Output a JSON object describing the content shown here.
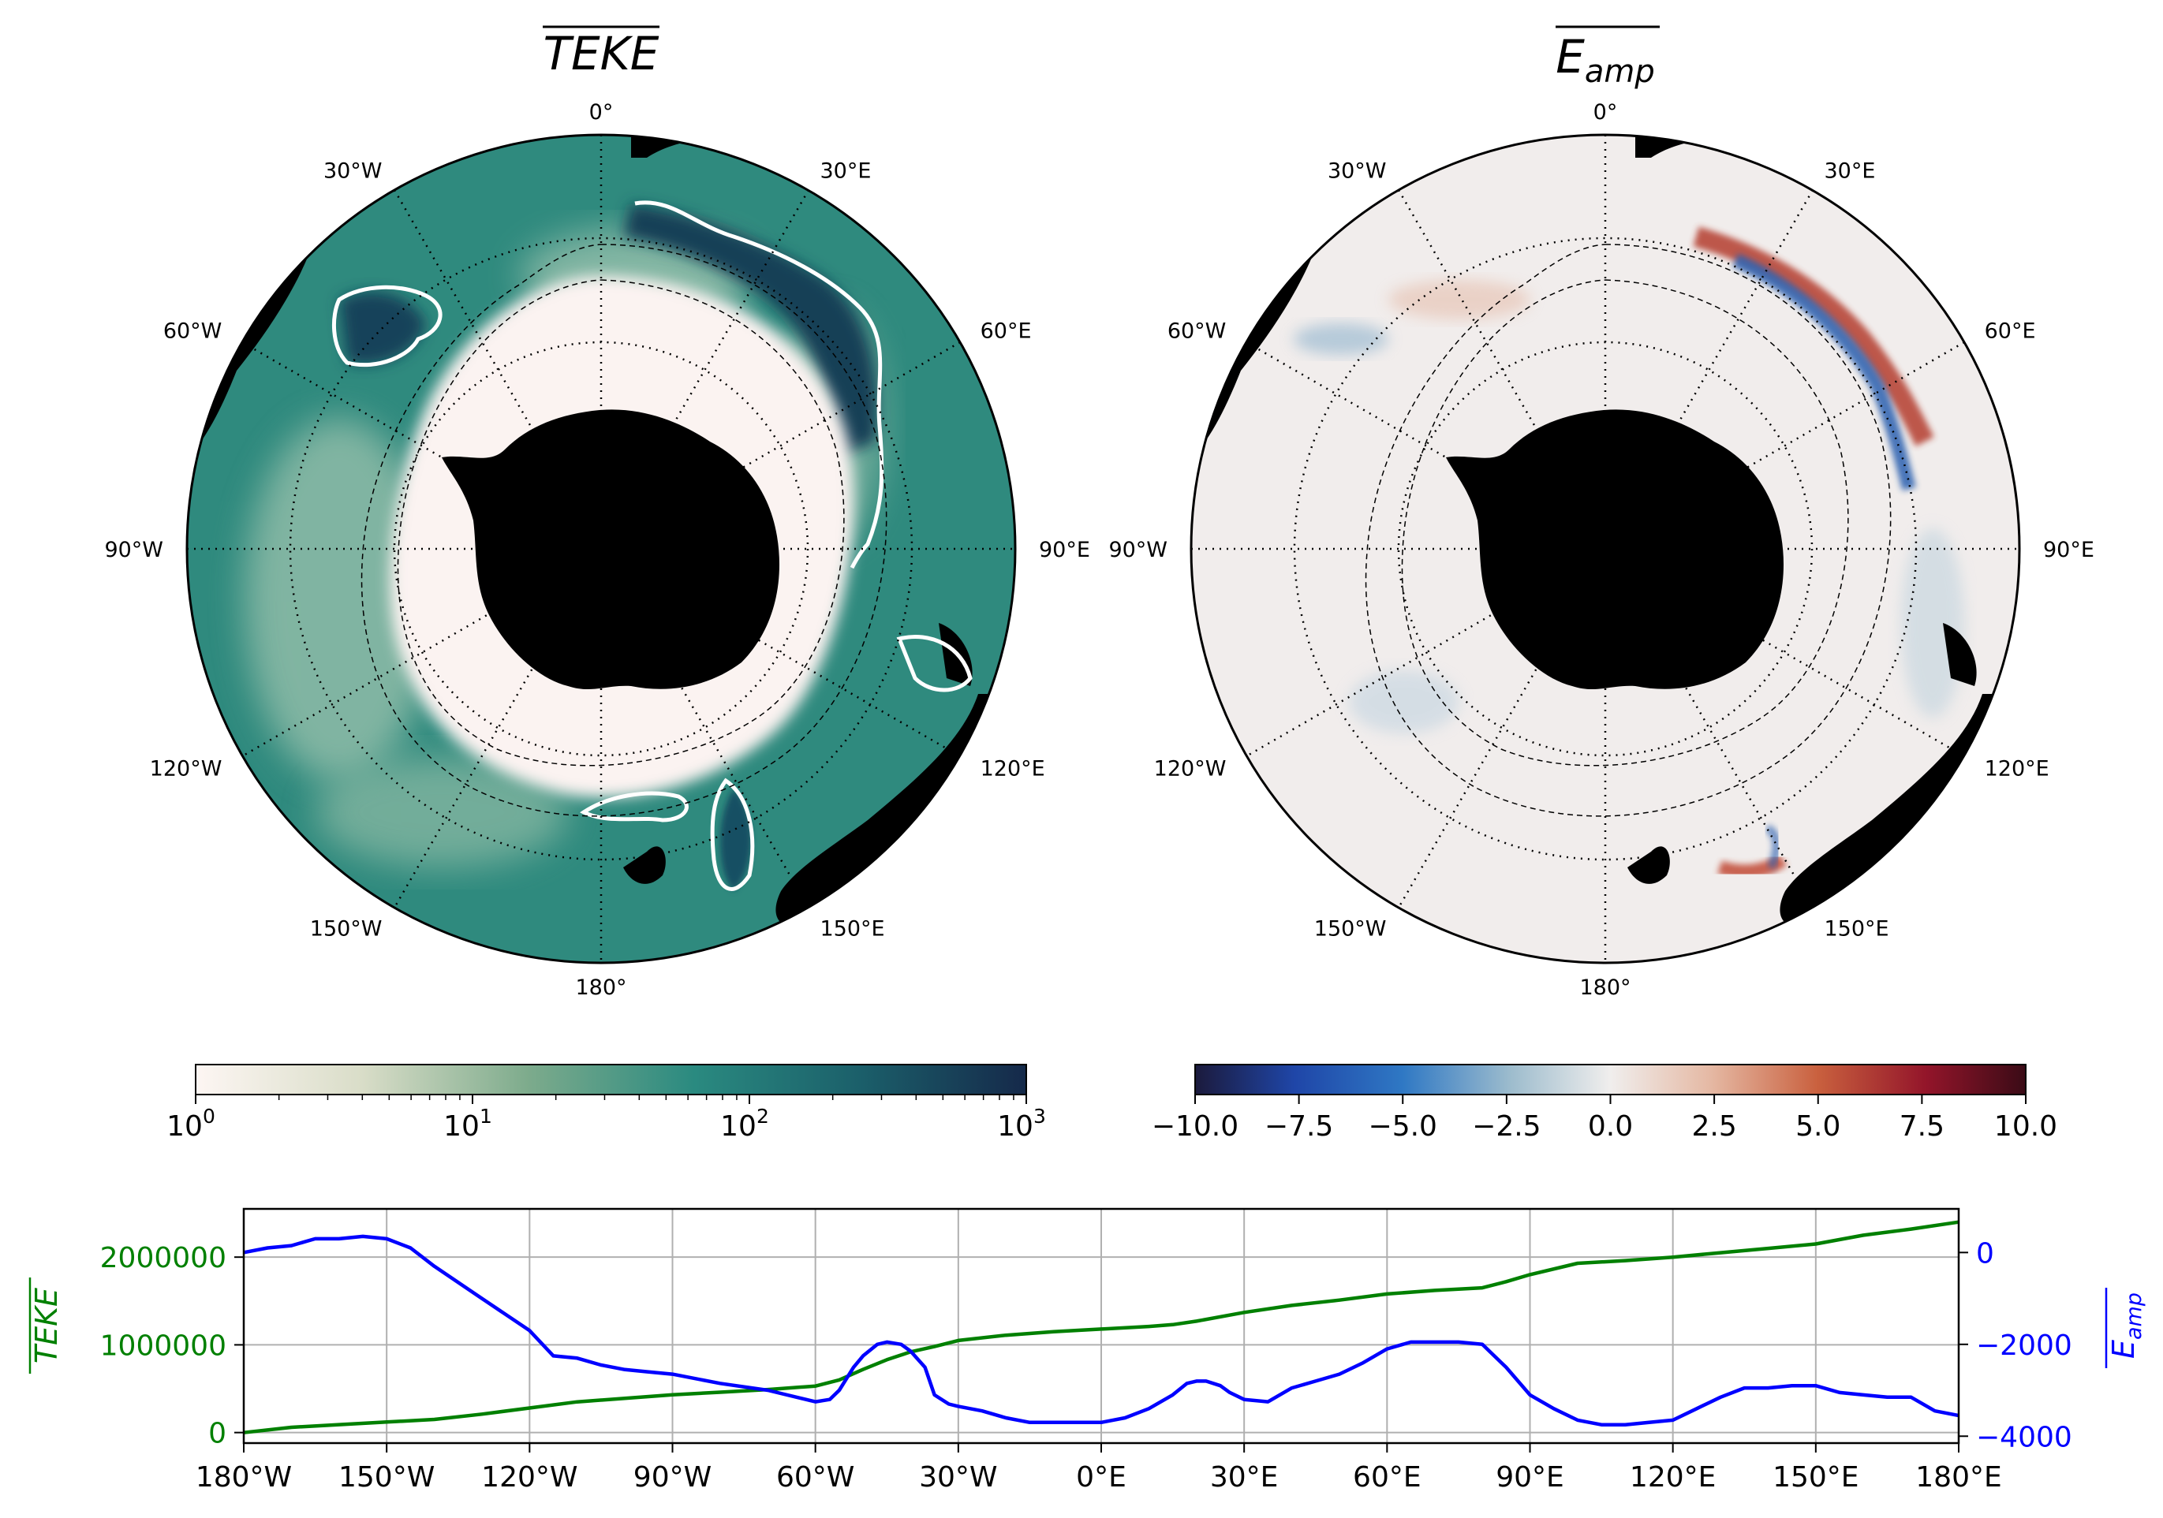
{
  "panels": [
    {
      "id": "teke",
      "title": "TEKE",
      "meridian_labels": [
        "0°",
        "30°E",
        "60°E",
        "90°E",
        "120°E",
        "150°E",
        "180°",
        "150°W",
        "120°W",
        "90°W",
        "60°W",
        "30°W"
      ],
      "colorbar": {
        "scale": "log",
        "range": [
          1,
          1000
        ],
        "tick_labels": [
          {
            "base": "10",
            "exp": "0"
          },
          {
            "base": "10",
            "exp": "1"
          },
          {
            "base": "10",
            "exp": "2"
          },
          {
            "base": "10",
            "exp": "3"
          }
        ],
        "colors": [
          "#fdf6f3",
          "#d9ddc8",
          "#7dab8c",
          "#2a8a80",
          "#1b5f6a",
          "#15294a"
        ]
      },
      "colors": {
        "land": "#000000",
        "ocean_fill": "#2f8a7e",
        "ice_zone": "#fbf3f1",
        "contour": "#ffffff"
      }
    },
    {
      "id": "eamp",
      "title": "E",
      "title_sub": "amp",
      "meridian_labels": [
        "0°",
        "30°E",
        "60°E",
        "90°E",
        "120°E",
        "150°E",
        "180°",
        "150°W",
        "120°W",
        "90°W",
        "60°W",
        "30°W"
      ],
      "colorbar": {
        "scale": "linear",
        "range": [
          -10,
          10
        ],
        "tick_labels": [
          "−10.0",
          "−7.5",
          "−5.0",
          "−2.5",
          "0.0",
          "2.5",
          "5.0",
          "7.5",
          "10.0"
        ],
        "colors": [
          "#1b1a3c",
          "#1f46a8",
          "#2f78c4",
          "#9dbccd",
          "#f0eeed",
          "#e5b9a4",
          "#c9603e",
          "#93152a",
          "#3a0b16"
        ]
      },
      "colors": {
        "land": "#000000",
        "ocean_fill": "#f1edec",
        "positive": "#c14a35",
        "negative": "#2b61b0"
      }
    }
  ],
  "line_chart": {
    "left_ylabel": "TEKE",
    "right_ylabel": "E",
    "right_ylabel_sub": "amp",
    "left_color": "#008000",
    "right_color": "#0000ff",
    "x_tick_labels": [
      "180°W",
      "150°W",
      "120°W",
      "90°W",
      "60°W",
      "30°W",
      "0°E",
      "30°E",
      "60°E",
      "90°E",
      "120°E",
      "150°E",
      "180°E"
    ],
    "left_tick_labels": [
      "0",
      "1000000",
      "2000000"
    ],
    "right_tick_labels": [
      "0",
      "−2000",
      "−4000"
    ]
  },
  "chart_data": {
    "type": "line",
    "x_unit": "degrees longitude",
    "xlim": [
      -180,
      180
    ],
    "series": [
      {
        "name": "TEKE",
        "axis": "left",
        "ylim": [
          -120000,
          2550000
        ],
        "x": [
          -180,
          -170,
          -160,
          -150,
          -140,
          -130,
          -120,
          -110,
          -100,
          -90,
          -80,
          -70,
          -60,
          -55,
          -50,
          -45,
          -40,
          -35,
          -30,
          -20,
          -10,
          0,
          10,
          15,
          20,
          30,
          40,
          50,
          60,
          70,
          80,
          85,
          90,
          100,
          110,
          120,
          130,
          140,
          150,
          160,
          170,
          180
        ],
        "y": [
          0,
          60000,
          90000,
          120000,
          150000,
          210000,
          280000,
          350000,
          390000,
          430000,
          460000,
          490000,
          530000,
          600000,
          720000,
          830000,
          920000,
          980000,
          1050000,
          1110000,
          1150000,
          1180000,
          1210000,
          1230000,
          1270000,
          1370000,
          1450000,
          1510000,
          1580000,
          1620000,
          1650000,
          1720000,
          1800000,
          1930000,
          1960000,
          2000000,
          2050000,
          2100000,
          2150000,
          2250000,
          2320000,
          2400000
        ]
      },
      {
        "name": "E_amp",
        "axis": "right",
        "ylim": [
          -4150,
          950
        ],
        "x": [
          -180,
          -175,
          -170,
          -165,
          -160,
          -155,
          -150,
          -145,
          -140,
          -130,
          -120,
          -115,
          -110,
          -105,
          -100,
          -95,
          -90,
          -80,
          -70,
          -60,
          -57,
          -55,
          -52,
          -50,
          -47,
          -45,
          -42,
          -40,
          -37,
          -35,
          -32,
          -30,
          -25,
          -20,
          -15,
          -10,
          -5,
          0,
          5,
          10,
          15,
          18,
          20,
          22,
          25,
          27,
          30,
          35,
          40,
          45,
          50,
          55,
          60,
          65,
          70,
          75,
          80,
          85,
          90,
          95,
          100,
          105,
          110,
          115,
          120,
          125,
          130,
          135,
          140,
          145,
          150,
          155,
          160,
          165,
          170,
          175,
          180
        ],
        "y": [
          0,
          100,
          150,
          300,
          300,
          350,
          300,
          100,
          -300,
          -1000,
          -1700,
          -2250,
          -2300,
          -2450,
          -2550,
          -2600,
          -2650,
          -2850,
          -3000,
          -3250,
          -3200,
          -3000,
          -2500,
          -2250,
          -2000,
          -1950,
          -2000,
          -2150,
          -2500,
          -3100,
          -3300,
          -3350,
          -3450,
          -3600,
          -3700,
          -3700,
          -3700,
          -3700,
          -3600,
          -3400,
          -3100,
          -2850,
          -2800,
          -2800,
          -2900,
          -3050,
          -3200,
          -3250,
          -2950,
          -2800,
          -2650,
          -2400,
          -2100,
          -1950,
          -1950,
          -1950,
          -2000,
          -2500,
          -3100,
          -3400,
          -3650,
          -3750,
          -3750,
          -3700,
          -3650,
          -3400,
          -3150,
          -2950,
          -2950,
          -2900,
          -2900,
          -3050,
          -3100,
          -3150,
          -3150,
          -3450,
          -3550
        ]
      }
    ]
  }
}
